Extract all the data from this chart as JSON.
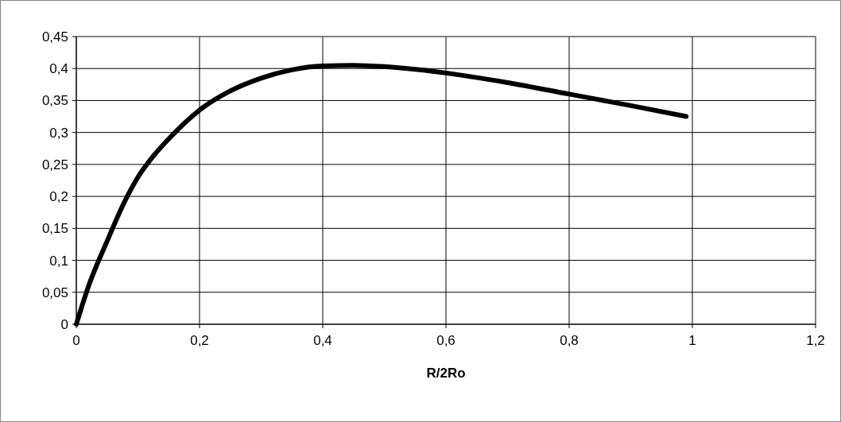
{
  "chart_data": {
    "type": "line",
    "xlabel": "R/2Ro",
    "x": [
      0,
      0.02,
      0.05,
      0.075,
      0.1,
      0.125,
      0.15,
      0.2,
      0.25,
      0.3,
      0.35,
      0.4,
      0.45,
      0.5,
      0.6,
      0.7,
      0.8,
      0.9,
      0.99
    ],
    "series": [
      {
        "color": "#000000",
        "values": [
          0,
          0.06,
          0.13,
          0.185,
          0.23,
          0.263,
          0.29,
          0.335,
          0.365,
          0.385,
          0.398,
          0.404,
          0.405,
          0.403,
          0.393,
          0.378,
          0.36,
          0.342,
          0.325
        ]
      }
    ],
    "xlim": [
      0,
      1.2
    ],
    "xticks": [
      {
        "value": 0,
        "label": "0"
      },
      {
        "value": 0.2,
        "label": "0,2"
      },
      {
        "value": 0.4,
        "label": "0,4"
      },
      {
        "value": 0.6,
        "label": "0,6"
      },
      {
        "value": 0.8,
        "label": "0,8"
      },
      {
        "value": 1,
        "label": "1"
      },
      {
        "value": 1.2,
        "label": "1,2"
      }
    ],
    "ylim": [
      0,
      0.45
    ],
    "yticks": [
      {
        "value": 0,
        "label": "0"
      },
      {
        "value": 0.05,
        "label": "0,05"
      },
      {
        "value": 0.1,
        "label": "0,1"
      },
      {
        "value": 0.15,
        "label": "0,15"
      },
      {
        "value": 0.2,
        "label": "0,2"
      },
      {
        "value": 0.25,
        "label": "0,25"
      },
      {
        "value": 0.3,
        "label": "0,3"
      },
      {
        "value": 0.35,
        "label": "0,35"
      },
      {
        "value": 0.4,
        "label": "0,4"
      },
      {
        "value": 0.45,
        "label": "0,45"
      }
    ],
    "grid": true,
    "marker": "none",
    "line_style": "solid"
  }
}
